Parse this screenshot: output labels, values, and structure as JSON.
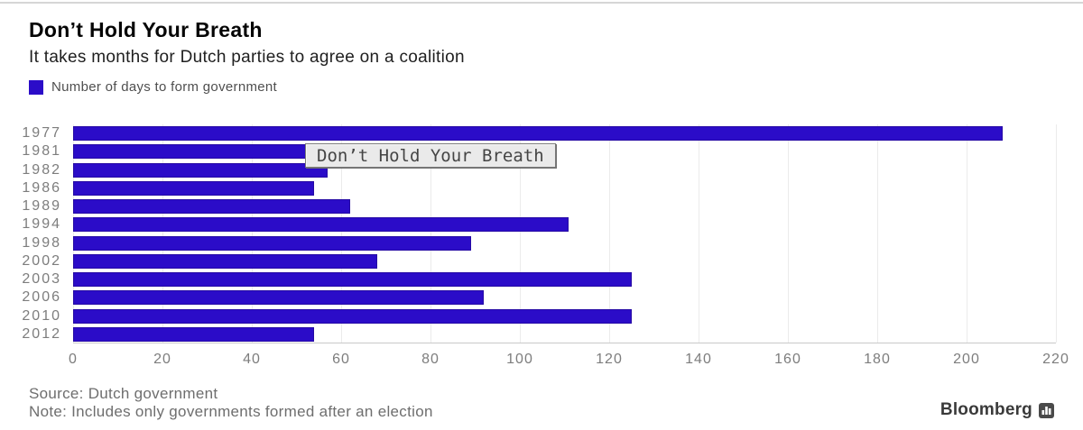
{
  "header": {
    "title": "Don’t Hold Your Breath",
    "subtitle": "It takes months for Dutch parties to agree on a coalition"
  },
  "legend": {
    "label": "Number of days to form government"
  },
  "tooltip": {
    "text": "Don’t Hold Your Breath"
  },
  "chart_data": {
    "type": "bar",
    "orientation": "horizontal",
    "title": "Don’t Hold Your Breath",
    "subtitle": "It takes months for Dutch parties to agree on a coalition",
    "series_name": "Number of days to form government",
    "categories": [
      "1977",
      "1981",
      "1982",
      "1986",
      "1989",
      "1994",
      "1998",
      "2002",
      "2003",
      "2006",
      "2010",
      "2012"
    ],
    "values": [
      208,
      108,
      57,
      54,
      62,
      111,
      89,
      68,
      125,
      92,
      125,
      54
    ],
    "xlabel": "",
    "ylabel": "",
    "xlim": [
      0,
      220
    ],
    "xticks": [
      0,
      20,
      40,
      60,
      80,
      100,
      120,
      140,
      160,
      180,
      200,
      220
    ],
    "grid": "vertical",
    "bar_color": "#2b0cc8",
    "bar_border_color": "#2509a4",
    "gridline_color": "#ebebeb"
  },
  "footer": {
    "source": "Source: Dutch government",
    "note": "Note: Includes only governments formed after an election",
    "brand": "Bloomberg"
  }
}
